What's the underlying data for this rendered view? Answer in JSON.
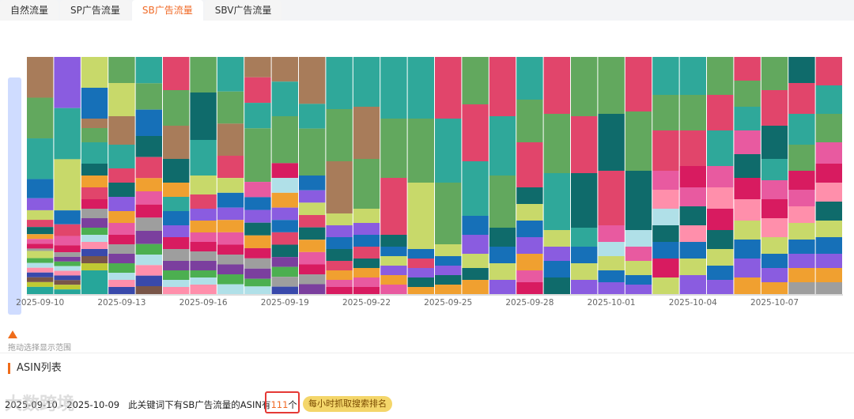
{
  "tabs": [
    {
      "label": "自然流量",
      "active": false
    },
    {
      "label": "SP广告流量",
      "active": false
    },
    {
      "label": "SB广告流量",
      "active": true
    },
    {
      "label": "SBV广告流量",
      "active": false
    }
  ],
  "brush_hint": "拖动选择显示范围",
  "section_title": "ASIN列表",
  "summary": {
    "date_range": "2025-09-10 - 2025-10-09",
    "text_before": "此关键词下有SB广告流量的ASIN有",
    "count": "111",
    "text_after": "个",
    "badge": "每小时抓取搜索排名"
  },
  "watermark": "大数跨境",
  "colors": {
    "accent": "#f06a26",
    "highlight_box": "#e53935",
    "badge_bg": "#f4d66a"
  },
  "chart_data": {
    "type": "bar",
    "stacked": true,
    "normalized": true,
    "x_ticks": [
      "2025-09-10",
      "2025-09-13",
      "2025-09-16",
      "2025-09-19",
      "2025-09-22",
      "2025-09-25",
      "2025-09-28",
      "2025-10-01",
      "2025-10-04",
      "2025-10-07"
    ],
    "categories": [
      "2025-09-10",
      "2025-09-11",
      "2025-09-12",
      "2025-09-13",
      "2025-09-14",
      "2025-09-15",
      "2025-09-16",
      "2025-09-17",
      "2025-09-18",
      "2025-09-19",
      "2025-09-20",
      "2025-09-21",
      "2025-09-22",
      "2025-09-23",
      "2025-09-24",
      "2025-09-25",
      "2025-09-26",
      "2025-09-27",
      "2025-09-28",
      "2025-09-29",
      "2025-09-30",
      "2025-10-01",
      "2025-10-02",
      "2025-10-03",
      "2025-10-04",
      "2025-10-05",
      "2025-10-06",
      "2025-10-07",
      "2025-10-08",
      "2025-10-09"
    ],
    "colors": [
      "#a87c5a",
      "#62a85e",
      "#2fa89a",
      "#1670b8",
      "#8a5ce0",
      "#c8d96a",
      "#e1456b",
      "#0f6b6b",
      "#f0a030",
      "#e85aa0",
      "#d81b60",
      "#9e9e9e",
      "#7b3f9e",
      "#4caf50",
      "#b0e0e8",
      "#ff8fab",
      "#3949ab",
      "#795548",
      "#c0ca33",
      "#26a69a"
    ],
    "series_segments": [
      [
        [
          0,
          0.17
        ],
        [
          1,
          0.17
        ],
        [
          2,
          0.17
        ],
        [
          3,
          0.08
        ],
        [
          4,
          0.05
        ],
        [
          5,
          0.04
        ],
        [
          6,
          0.03
        ],
        [
          7,
          0.03
        ],
        [
          8,
          0.02
        ],
        [
          9,
          0.02
        ],
        [
          10,
          0.02
        ],
        [
          11,
          0.01
        ],
        [
          5,
          0.03
        ],
        [
          13,
          0.02
        ],
        [
          14,
          0.02
        ],
        [
          15,
          0.02
        ],
        [
          16,
          0.02
        ],
        [
          17,
          0.02
        ],
        [
          18,
          0.02
        ],
        [
          19,
          0.03
        ]
      ],
      [
        [
          4,
          0.22
        ],
        [
          2,
          0.22
        ],
        [
          5,
          0.22
        ],
        [
          3,
          0.06
        ],
        [
          6,
          0.05
        ],
        [
          9,
          0.04
        ],
        [
          10,
          0.03
        ],
        [
          11,
          0.02
        ],
        [
          12,
          0.02
        ],
        [
          13,
          0.02
        ],
        [
          14,
          0.02
        ],
        [
          15,
          0.02
        ],
        [
          16,
          0.02
        ],
        [
          17,
          0.02
        ],
        [
          18,
          0.02
        ],
        [
          19,
          0.02
        ]
      ],
      [
        [
          5,
          0.13
        ],
        [
          3,
          0.13
        ],
        [
          0,
          0.04
        ],
        [
          1,
          0.06
        ],
        [
          2,
          0.09
        ],
        [
          7,
          0.05
        ],
        [
          8,
          0.05
        ],
        [
          6,
          0.05
        ],
        [
          10,
          0.04
        ],
        [
          11,
          0.04
        ],
        [
          12,
          0.04
        ],
        [
          13,
          0.03
        ],
        [
          14,
          0.03
        ],
        [
          15,
          0.03
        ],
        [
          16,
          0.03
        ],
        [
          17,
          0.03
        ],
        [
          18,
          0.03
        ],
        [
          19,
          0.1
        ]
      ],
      [
        [
          1,
          0.11
        ],
        [
          5,
          0.14
        ],
        [
          0,
          0.12
        ],
        [
          2,
          0.1
        ],
        [
          6,
          0.06
        ],
        [
          7,
          0.06
        ],
        [
          4,
          0.06
        ],
        [
          8,
          0.05
        ],
        [
          9,
          0.05
        ],
        [
          10,
          0.04
        ],
        [
          11,
          0.04
        ],
        [
          12,
          0.04
        ],
        [
          13,
          0.04
        ],
        [
          14,
          0.03
        ],
        [
          15,
          0.03
        ],
        [
          16,
          0.03
        ]
      ],
      [
        [
          2,
          0.1
        ],
        [
          1,
          0.1
        ],
        [
          3,
          0.1
        ],
        [
          7,
          0.08
        ],
        [
          6,
          0.08
        ],
        [
          8,
          0.05
        ],
        [
          9,
          0.05
        ],
        [
          10,
          0.05
        ],
        [
          11,
          0.05
        ],
        [
          12,
          0.05
        ],
        [
          13,
          0.04
        ],
        [
          14,
          0.04
        ],
        [
          15,
          0.04
        ],
        [
          16,
          0.04
        ],
        [
          17,
          0.03
        ]
      ],
      [
        [
          6,
          0.14
        ],
        [
          1,
          0.15
        ],
        [
          0,
          0.14
        ],
        [
          7,
          0.1
        ],
        [
          8,
          0.06
        ],
        [
          2,
          0.06
        ],
        [
          3,
          0.06
        ],
        [
          4,
          0.05
        ],
        [
          10,
          0.05
        ],
        [
          11,
          0.05
        ],
        [
          12,
          0.04
        ],
        [
          13,
          0.04
        ],
        [
          14,
          0.03
        ],
        [
          15,
          0.03
        ]
      ],
      [
        [
          1,
          0.15
        ],
        [
          7,
          0.2
        ],
        [
          2,
          0.15
        ],
        [
          5,
          0.08
        ],
        [
          6,
          0.06
        ],
        [
          4,
          0.05
        ],
        [
          8,
          0.05
        ],
        [
          9,
          0.04
        ],
        [
          10,
          0.04
        ],
        [
          11,
          0.04
        ],
        [
          12,
          0.04
        ],
        [
          13,
          0.03
        ],
        [
          14,
          0.03
        ],
        [
          15,
          0.04
        ]
      ],
      [
        [
          2,
          0.14
        ],
        [
          1,
          0.13
        ],
        [
          0,
          0.13
        ],
        [
          6,
          0.09
        ],
        [
          5,
          0.06
        ],
        [
          3,
          0.06
        ],
        [
          4,
          0.05
        ],
        [
          8,
          0.05
        ],
        [
          9,
          0.05
        ],
        [
          10,
          0.04
        ],
        [
          11,
          0.04
        ],
        [
          12,
          0.04
        ],
        [
          13,
          0.04
        ],
        [
          14,
          0.04
        ]
      ],
      [
        [
          0,
          0.08
        ],
        [
          6,
          0.1
        ],
        [
          2,
          0.1
        ],
        [
          1,
          0.21
        ],
        [
          9,
          0.06
        ],
        [
          3,
          0.05
        ],
        [
          4,
          0.05
        ],
        [
          7,
          0.05
        ],
        [
          8,
          0.05
        ],
        [
          10,
          0.04
        ],
        [
          11,
          0.04
        ],
        [
          12,
          0.04
        ],
        [
          13,
          0.03
        ],
        [
          14,
          0.03
        ]
      ],
      [
        [
          0,
          0.1
        ],
        [
          2,
          0.14
        ],
        [
          1,
          0.19
        ],
        [
          10,
          0.06
        ],
        [
          14,
          0.06
        ],
        [
          8,
          0.06
        ],
        [
          4,
          0.05
        ],
        [
          3,
          0.05
        ],
        [
          6,
          0.05
        ],
        [
          7,
          0.05
        ],
        [
          12,
          0.04
        ],
        [
          13,
          0.04
        ],
        [
          11,
          0.04
        ],
        [
          16,
          0.03
        ]
      ],
      [
        [
          0,
          0.19
        ],
        [
          2,
          0.1
        ],
        [
          1,
          0.19
        ],
        [
          3,
          0.06
        ],
        [
          4,
          0.05
        ],
        [
          5,
          0.05
        ],
        [
          6,
          0.05
        ],
        [
          7,
          0.05
        ],
        [
          8,
          0.05
        ],
        [
          9,
          0.05
        ],
        [
          10,
          0.04
        ],
        [
          11,
          0.04
        ],
        [
          12,
          0.04
        ]
      ],
      [
        [
          2,
          0.22
        ],
        [
          1,
          0.22
        ],
        [
          0,
          0.22
        ],
        [
          5,
          0.05
        ],
        [
          4,
          0.05
        ],
        [
          3,
          0.05
        ],
        [
          7,
          0.05
        ],
        [
          6,
          0.04
        ],
        [
          8,
          0.04
        ],
        [
          9,
          0.03
        ],
        [
          10,
          0.03
        ]
      ],
      [
        [
          2,
          0.21
        ],
        [
          0,
          0.22
        ],
        [
          1,
          0.21
        ],
        [
          5,
          0.06
        ],
        [
          4,
          0.05
        ],
        [
          3,
          0.05
        ],
        [
          6,
          0.05
        ],
        [
          7,
          0.04
        ],
        [
          8,
          0.04
        ],
        [
          9,
          0.04
        ],
        [
          10,
          0.03
        ]
      ],
      [
        [
          2,
          0.26
        ],
        [
          1,
          0.25
        ],
        [
          6,
          0.24
        ],
        [
          7,
          0.05
        ],
        [
          3,
          0.04
        ],
        [
          5,
          0.04
        ],
        [
          4,
          0.04
        ],
        [
          8,
          0.04
        ],
        [
          9,
          0.04
        ]
      ],
      [
        [
          2,
          0.26
        ],
        [
          1,
          0.27
        ],
        [
          5,
          0.28
        ],
        [
          3,
          0.04
        ],
        [
          6,
          0.04
        ],
        [
          4,
          0.04
        ],
        [
          7,
          0.04
        ],
        [
          8,
          0.03
        ]
      ],
      [
        [
          6,
          0.26
        ],
        [
          2,
          0.27
        ],
        [
          1,
          0.26
        ],
        [
          5,
          0.05
        ],
        [
          3,
          0.04
        ],
        [
          4,
          0.04
        ],
        [
          7,
          0.04
        ],
        [
          8,
          0.04
        ]
      ],
      [
        [
          1,
          0.2
        ],
        [
          6,
          0.24
        ],
        [
          2,
          0.23
        ],
        [
          3,
          0.08
        ],
        [
          4,
          0.08
        ],
        [
          5,
          0.06
        ],
        [
          7,
          0.05
        ],
        [
          8,
          0.06
        ]
      ],
      [
        [
          6,
          0.25
        ],
        [
          2,
          0.25
        ],
        [
          1,
          0.22
        ],
        [
          7,
          0.08
        ],
        [
          3,
          0.07
        ],
        [
          5,
          0.07
        ],
        [
          4,
          0.06
        ]
      ],
      [
        [
          2,
          0.18
        ],
        [
          1,
          0.18
        ],
        [
          6,
          0.19
        ],
        [
          7,
          0.07
        ],
        [
          5,
          0.07
        ],
        [
          3,
          0.07
        ],
        [
          4,
          0.07
        ],
        [
          8,
          0.07
        ],
        [
          9,
          0.05
        ],
        [
          10,
          0.05
        ]
      ],
      [
        [
          6,
          0.24
        ],
        [
          1,
          0.25
        ],
        [
          2,
          0.24
        ],
        [
          5,
          0.07
        ],
        [
          4,
          0.06
        ],
        [
          3,
          0.07
        ],
        [
          7,
          0.07
        ]
      ],
      [
        [
          1,
          0.25
        ],
        [
          6,
          0.24
        ],
        [
          7,
          0.23
        ],
        [
          2,
          0.08
        ],
        [
          3,
          0.07
        ],
        [
          5,
          0.07
        ],
        [
          4,
          0.06
        ]
      ],
      [
        [
          1,
          0.24
        ],
        [
          7,
          0.24
        ],
        [
          6,
          0.23
        ],
        [
          9,
          0.07
        ],
        [
          14,
          0.06
        ],
        [
          5,
          0.06
        ],
        [
          3,
          0.05
        ],
        [
          4,
          0.05
        ]
      ],
      [
        [
          6,
          0.23
        ],
        [
          1,
          0.25
        ],
        [
          7,
          0.25
        ],
        [
          14,
          0.07
        ],
        [
          9,
          0.06
        ],
        [
          5,
          0.06
        ],
        [
          3,
          0.04
        ],
        [
          4,
          0.04
        ]
      ],
      [
        [
          2,
          0.16
        ],
        [
          1,
          0.15
        ],
        [
          6,
          0.17
        ],
        [
          9,
          0.08
        ],
        [
          15,
          0.08
        ],
        [
          14,
          0.07
        ],
        [
          7,
          0.07
        ],
        [
          3,
          0.07
        ],
        [
          10,
          0.08
        ],
        [
          5,
          0.07
        ]
      ],
      [
        [
          2,
          0.16
        ],
        [
          1,
          0.15
        ],
        [
          6,
          0.15
        ],
        [
          10,
          0.09
        ],
        [
          9,
          0.08
        ],
        [
          7,
          0.08
        ],
        [
          15,
          0.07
        ],
        [
          3,
          0.07
        ],
        [
          5,
          0.07
        ],
        [
          4,
          0.08
        ]
      ],
      [
        [
          1,
          0.16
        ],
        [
          6,
          0.15
        ],
        [
          2,
          0.15
        ],
        [
          9,
          0.09
        ],
        [
          15,
          0.09
        ],
        [
          10,
          0.09
        ],
        [
          7,
          0.08
        ],
        [
          5,
          0.07
        ],
        [
          3,
          0.06
        ],
        [
          4,
          0.06
        ]
      ],
      [
        [
          6,
          0.1
        ],
        [
          1,
          0.11
        ],
        [
          2,
          0.1
        ],
        [
          9,
          0.1
        ],
        [
          7,
          0.1
        ],
        [
          10,
          0.09
        ],
        [
          15,
          0.09
        ],
        [
          5,
          0.08
        ],
        [
          3,
          0.08
        ],
        [
          4,
          0.08
        ],
        [
          8,
          0.07
        ]
      ],
      [
        [
          1,
          0.14
        ],
        [
          6,
          0.15
        ],
        [
          7,
          0.14
        ],
        [
          2,
          0.09
        ],
        [
          9,
          0.08
        ],
        [
          10,
          0.08
        ],
        [
          15,
          0.08
        ],
        [
          5,
          0.07
        ],
        [
          3,
          0.06
        ],
        [
          4,
          0.06
        ],
        [
          8,
          0.05
        ]
      ],
      [
        [
          7,
          0.11
        ],
        [
          6,
          0.13
        ],
        [
          2,
          0.13
        ],
        [
          1,
          0.11
        ],
        [
          10,
          0.08
        ],
        [
          9,
          0.07
        ],
        [
          15,
          0.07
        ],
        [
          5,
          0.07
        ],
        [
          3,
          0.06
        ],
        [
          4,
          0.06
        ],
        [
          8,
          0.06
        ],
        [
          11,
          0.05
        ]
      ],
      [
        [
          6,
          0.12
        ],
        [
          2,
          0.12
        ],
        [
          1,
          0.12
        ],
        [
          9,
          0.09
        ],
        [
          10,
          0.08
        ],
        [
          15,
          0.08
        ],
        [
          7,
          0.08
        ],
        [
          5,
          0.07
        ],
        [
          3,
          0.07
        ],
        [
          4,
          0.06
        ],
        [
          8,
          0.06
        ],
        [
          11,
          0.05
        ]
      ]
    ]
  }
}
